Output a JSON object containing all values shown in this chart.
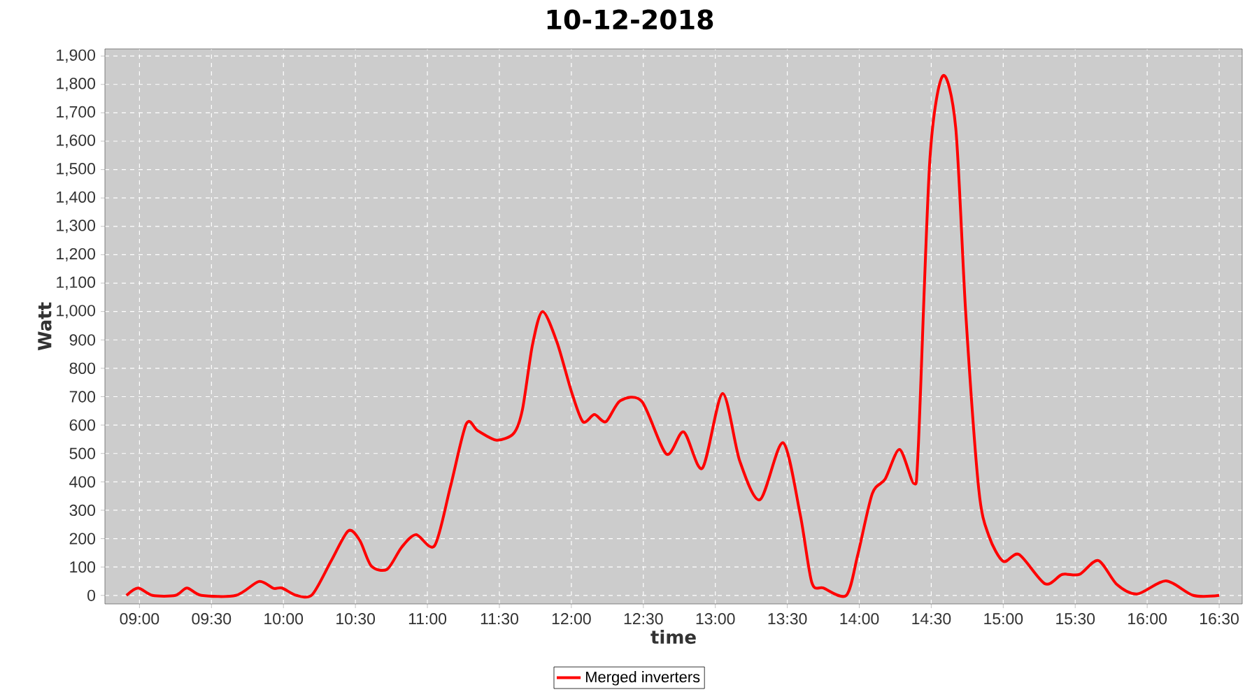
{
  "chart_data": {
    "type": "line",
    "title": "10-12-2018",
    "xlabel": "time",
    "ylabel": "Watt",
    "x": [
      8.91,
      8.99,
      9.09,
      9.25,
      9.33,
      9.43,
      9.67,
      9.83,
      9.93,
      9.99,
      10.09,
      10.2,
      10.33,
      10.45,
      10.53,
      10.61,
      10.72,
      10.82,
      10.92,
      11.05,
      11.16,
      11.27,
      11.35,
      11.48,
      11.6,
      11.66,
      11.73,
      11.8,
      11.9,
      12.0,
      12.08,
      12.16,
      12.24,
      12.34,
      12.49,
      12.66,
      12.78,
      12.91,
      13.05,
      13.17,
      13.31,
      13.47,
      13.59,
      13.67,
      13.75,
      13.91,
      13.99,
      14.09,
      14.18,
      14.28,
      14.38,
      14.41,
      14.49,
      14.58,
      14.67,
      14.74,
      14.83,
      14.9,
      15.0,
      15.11,
      15.29,
      15.41,
      15.53,
      15.66,
      15.79,
      15.93,
      16.13,
      16.32,
      16.5
    ],
    "series": [
      {
        "name": "Merged inverters",
        "color": "#ff0000",
        "values": [
          0,
          26,
          0,
          0,
          26,
          0,
          0,
          49,
          25,
          26,
          0,
          3,
          120,
          227,
          194,
          104,
          92,
          169,
          214,
          175,
          383,
          604,
          580,
          547,
          571,
          654,
          883,
          1000,
          892,
          719,
          612,
          637,
          612,
          686,
          683,
          498,
          576,
          448,
          711,
          473,
          337,
          538,
          284,
          46,
          26,
          0,
          144,
          358,
          410,
          514,
          394,
          522,
          1532,
          1830,
          1647,
          990,
          374,
          210,
          120,
          144,
          41,
          74,
          74,
          123,
          38,
          5,
          51,
          0,
          0
        ]
      }
    ],
    "xlim": [
      8.76,
      16.66
    ],
    "ylim": [
      -30,
      1925
    ],
    "xticks": [
      {
        "value": 9,
        "label": "09:00"
      },
      {
        "value": 9.5,
        "label": "09:30"
      },
      {
        "value": 10,
        "label": "10:00"
      },
      {
        "value": 10.5,
        "label": "10:30"
      },
      {
        "value": 11,
        "label": "11:00"
      },
      {
        "value": 11.5,
        "label": "11:30"
      },
      {
        "value": 12,
        "label": "12:00"
      },
      {
        "value": 12.5,
        "label": "12:30"
      },
      {
        "value": 13,
        "label": "13:00"
      },
      {
        "value": 13.5,
        "label": "13:30"
      },
      {
        "value": 14,
        "label": "14:00"
      },
      {
        "value": 14.5,
        "label": "14:30"
      },
      {
        "value": 15,
        "label": "15:00"
      },
      {
        "value": 15.5,
        "label": "15:30"
      },
      {
        "value": 16,
        "label": "16:00"
      },
      {
        "value": 16.5,
        "label": "16:30"
      }
    ],
    "yticks": [
      0,
      100,
      200,
      300,
      400,
      500,
      600,
      700,
      800,
      900,
      {
        "value": 1000,
        "label": "1,000"
      },
      {
        "value": 1100,
        "label": "1,100"
      },
      {
        "value": 1200,
        "label": "1,200"
      },
      {
        "value": 1300,
        "label": "1,300"
      },
      {
        "value": 1400,
        "label": "1,400"
      },
      {
        "value": 1500,
        "label": "1,500"
      },
      {
        "value": 1600,
        "label": "1,600"
      },
      {
        "value": 1700,
        "label": "1,700"
      },
      {
        "value": 1800,
        "label": "1,800"
      },
      {
        "value": 1900,
        "label": "1,900"
      }
    ],
    "grid": true,
    "legend": "bottom",
    "marker": "none",
    "line_style": "solid"
  }
}
